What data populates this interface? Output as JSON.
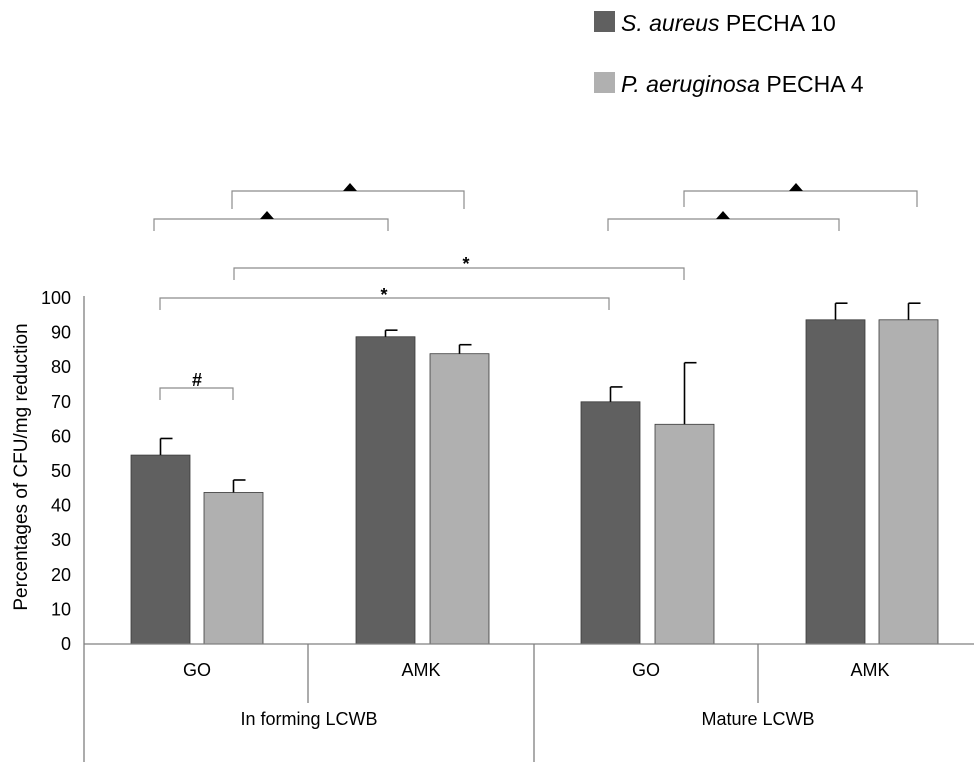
{
  "chart_data": {
    "type": "bar",
    "ylabel": "Percentages of CFU/mg reduction",
    "ylim": [
      0,
      100
    ],
    "yticks": [
      "100",
      "90",
      "80",
      "70",
      "60",
      "50",
      "40",
      "30",
      "20",
      "10",
      "0"
    ],
    "groups": [
      "In forming LCWB",
      "Mature LCWB"
    ],
    "categories": [
      "GO",
      "AMK",
      "GO",
      "AMK"
    ],
    "series": [
      {
        "name_italic": "S. aureus",
        "name_rest": " PECHA 10",
        "color": "#606060",
        "values": [
          54.6,
          88.8,
          70.0,
          93.7
        ],
        "errors": [
          4.8,
          1.9,
          4.3,
          4.8
        ]
      },
      {
        "name_italic": "P. aeruginosa",
        "name_rest": " PECHA 4",
        "color": "#b0b0b0",
        "values": [
          43.8,
          83.9,
          63.5,
          93.7
        ],
        "errors": [
          3.6,
          2.6,
          17.8,
          4.8
        ]
      }
    ],
    "significance": {
      "hash": "#",
      "star": "*"
    },
    "legend_position": "top-right"
  }
}
